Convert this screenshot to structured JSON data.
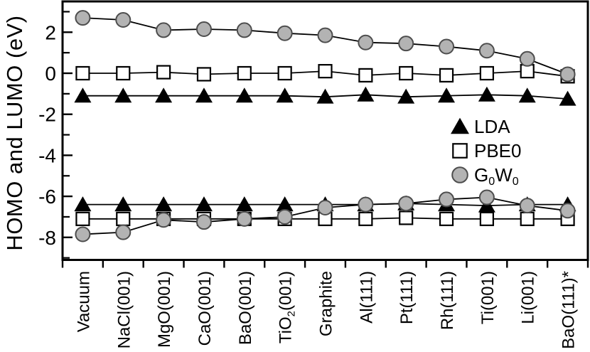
{
  "chart_data": {
    "type": "line",
    "title": "",
    "xlabel": "",
    "ylabel": "HOMO and LUMO (eV)",
    "ylim": [
      -9.15,
      3.5
    ],
    "grid": false,
    "y_major_ticks": [
      2,
      0,
      -2,
      -4,
      -6,
      -8
    ],
    "y_minor_ticks": [
      3,
      1,
      -1,
      -3,
      -5,
      -7,
      -9
    ],
    "categories": [
      "Vacuum",
      "NaCl(001)",
      "MgO(001)",
      "CaO(001)",
      "BaO(001)",
      "TiO₂(001)",
      "Graphite",
      "Al(111)",
      "Pt(111)",
      "Rh(111)",
      "Ti(001)",
      "Li(001)",
      "BaO(111)*"
    ],
    "series": [
      {
        "name": "LDA",
        "band": "LUMO",
        "marker": "triangle",
        "values": [
          -1.1,
          -1.1,
          -1.1,
          -1.1,
          -1.1,
          -1.1,
          -1.15,
          -1.05,
          -1.15,
          -1.1,
          -1.05,
          -1.1,
          -1.25
        ]
      },
      {
        "name": "PBE0",
        "band": "LUMO",
        "marker": "square",
        "values": [
          0.0,
          0.0,
          0.05,
          -0.05,
          0.0,
          0.0,
          0.1,
          -0.1,
          0.0,
          -0.1,
          0.0,
          0.1,
          -0.15
        ]
      },
      {
        "name": "G₀W₀",
        "band": "LUMO",
        "marker": "circle",
        "values": [
          2.7,
          2.6,
          2.1,
          2.15,
          2.1,
          1.95,
          1.85,
          1.5,
          1.45,
          1.3,
          1.1,
          0.7,
          -0.05
        ]
      },
      {
        "name": "LDA",
        "band": "HOMO",
        "marker": "triangle",
        "values": [
          -6.4,
          -6.4,
          -6.4,
          -6.4,
          -6.4,
          -6.4,
          -6.4,
          -6.4,
          -6.35,
          -6.4,
          -6.45,
          -6.4,
          -6.4
        ]
      },
      {
        "name": "PBE0",
        "band": "HOMO",
        "marker": "square",
        "values": [
          -7.1,
          -7.1,
          -7.1,
          -7.1,
          -7.1,
          -7.1,
          -7.1,
          -7.1,
          -7.05,
          -7.1,
          -7.1,
          -7.1,
          -7.1
        ]
      },
      {
        "name": "G₀W₀",
        "band": "HOMO",
        "marker": "circle",
        "values": [
          -7.85,
          -7.75,
          -7.15,
          -7.25,
          -7.1,
          -7.0,
          -6.55,
          -6.4,
          -6.35,
          -6.15,
          -6.05,
          -6.45,
          -6.7
        ]
      }
    ],
    "legend": {
      "position": "center-right",
      "entries": [
        {
          "label": "LDA",
          "marker": "triangle"
        },
        {
          "label": "PBE0",
          "marker": "square"
        },
        {
          "label": "G₀W₀",
          "marker": "circle"
        }
      ]
    },
    "colors": {
      "line": "#000000",
      "triangle_fill": "#000000",
      "square_fill": "#ffffff",
      "square_stroke": "#000000",
      "circle_fill": "#b3b3b3",
      "circle_stroke": "#4d4d4d"
    }
  }
}
